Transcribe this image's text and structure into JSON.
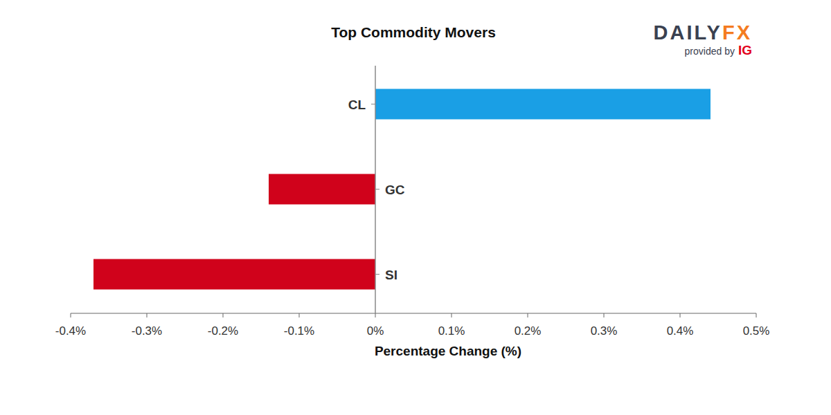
{
  "chart_data": {
    "type": "bar",
    "orientation": "horizontal",
    "title": "Top Commodity Movers",
    "annotations": [
      "DAILY",
      "FX",
      "provided by",
      "IG"
    ],
    "x_label": "Percentage Change (%)",
    "categories": [
      "CL",
      "GC",
      "SI"
    ],
    "values": [
      0.44,
      -0.14,
      -0.37
    ],
    "colors": [
      "#1a9fe5",
      "#d0021b",
      "#d0021b"
    ],
    "xlim": [
      -0.4,
      0.5
    ],
    "xticks": [
      {
        "value": -0.4,
        "label": "-0.4%"
      },
      {
        "value": -0.3,
        "label": "-0.3%"
      },
      {
        "value": -0.2,
        "label": "-0.2%"
      },
      {
        "value": -0.1,
        "label": "-0.1%"
      },
      {
        "value": 0,
        "label": "0%"
      },
      {
        "value": 0.1,
        "label": "0.1%"
      },
      {
        "value": 0.2,
        "label": "0.2%"
      },
      {
        "value": 0.3,
        "label": "0.3%"
      },
      {
        "value": 0.4,
        "label": "0.4%"
      },
      {
        "value": 0.5,
        "label": "0.5%"
      }
    ],
    "grid": false
  }
}
